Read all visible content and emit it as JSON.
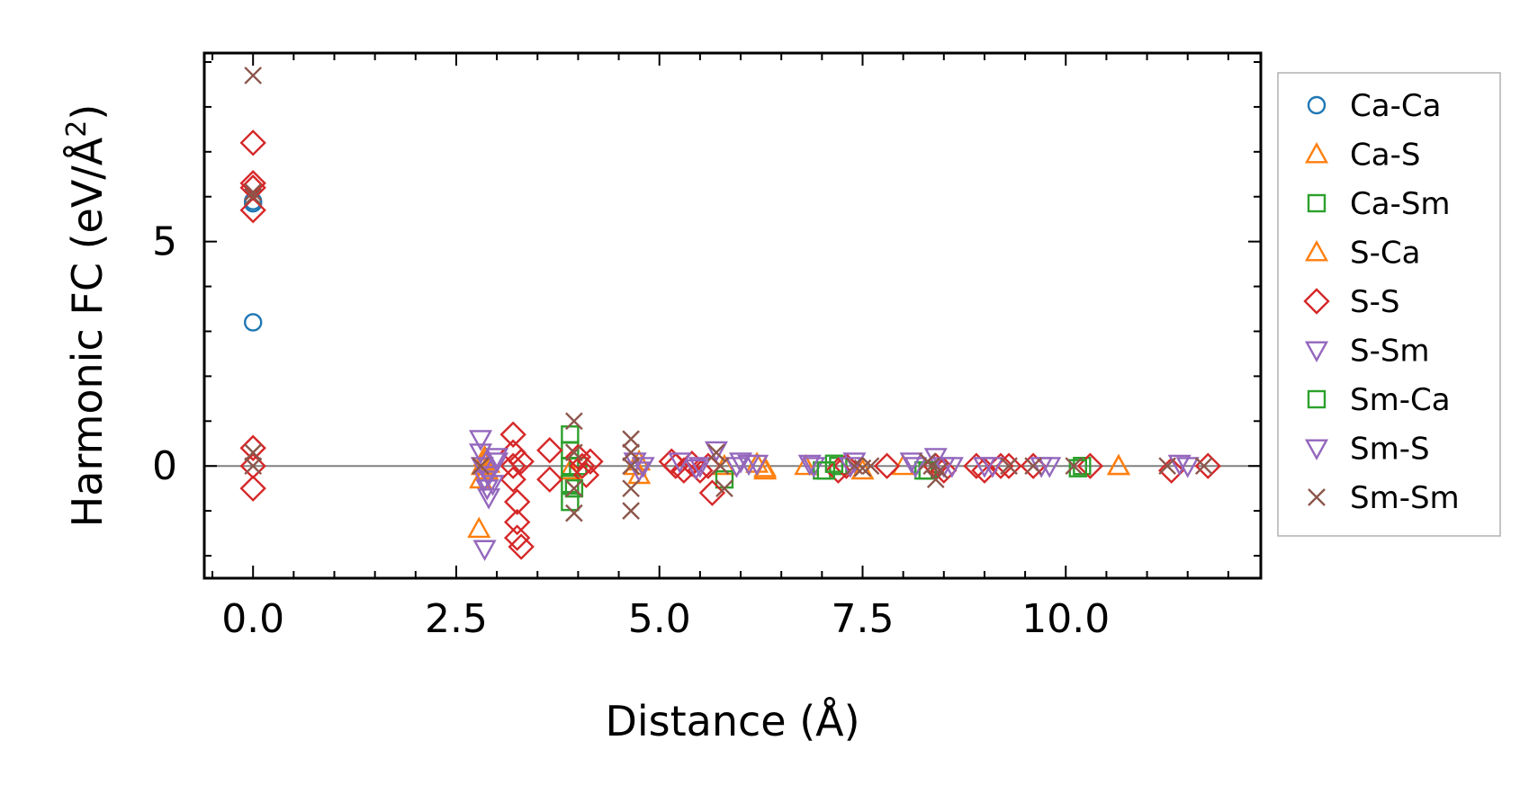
{
  "chart_data": {
    "type": "scatter",
    "xlabel": "Distance (Å)",
    "ylabel": "Harmonic FC (eV/Å",
    "ylabel_sup": "2",
    "ylabel_close": ")",
    "xlim": [
      -0.6,
      12.4
    ],
    "ylim": [
      -2.5,
      9.2
    ],
    "xticks": [
      0.0,
      2.5,
      5.0,
      7.5,
      10.0
    ],
    "xtick_labels": [
      "0.0",
      "2.5",
      "5.0",
      "7.5",
      "10.0"
    ],
    "yticks": [
      0,
      5
    ],
    "ytick_labels": [
      "0",
      "5"
    ],
    "zero_line": true,
    "grid": false,
    "legend_position": "outside-right",
    "series": [
      {
        "name": "Ca-Ca",
        "marker": "circle",
        "color": "#1f77b4",
        "x": [
          0,
          0,
          0
        ],
        "y": [
          5.9,
          5.85,
          3.2
        ]
      },
      {
        "name": "Ca-S",
        "marker": "triangle-up",
        "color": "#ff7f0e",
        "x": [
          2.78,
          2.8,
          2.82,
          2.85,
          2.88,
          2.9,
          3.9,
          4.7,
          4.75,
          5.8,
          6.2,
          6.3,
          6.8,
          7.5,
          8.0,
          10.65
        ],
        "y": [
          -1.4,
          -0.3,
          0.0,
          0.1,
          -0.1,
          0.05,
          -0.1,
          0.0,
          -0.2,
          0.0,
          0.05,
          -0.05,
          0.0,
          -0.1,
          0.0,
          0.0
        ]
      },
      {
        "name": "Ca-Sm",
        "marker": "square",
        "color": "#2ca02c",
        "x": [
          3.9,
          3.9,
          3.9,
          3.9,
          3.9,
          4.0,
          5.8,
          7.0,
          7.2,
          8.25,
          10.2
        ],
        "y": [
          0.7,
          0.35,
          0.0,
          -0.4,
          -0.8,
          0.0,
          -0.3,
          -0.1,
          0.0,
          -0.1,
          0.0
        ]
      },
      {
        "name": "S-Ca",
        "marker": "triangle-up",
        "color": "#ff7f0e",
        "x": [
          2.85,
          4.75,
          6.3,
          10.65
        ],
        "y": [
          0.2,
          0.1,
          -0.1,
          0.0
        ]
      },
      {
        "name": "S-S",
        "marker": "diamond",
        "color": "#d62728",
        "x": [
          0,
          0,
          0,
          0,
          0,
          0,
          0,
          3.2,
          3.2,
          3.2,
          3.25,
          3.25,
          3.25,
          3.3,
          3.3,
          3.2,
          3.65,
          3.65,
          4.0,
          4.05,
          4.1,
          4.15,
          5.15,
          5.2,
          5.3,
          5.4,
          5.5,
          5.6,
          5.65,
          7.2,
          7.3,
          7.8,
          8.4,
          8.5,
          8.9,
          9.0,
          9.2,
          9.3,
          9.6,
          10.3,
          11.3,
          11.75
        ],
        "y": [
          7.2,
          6.3,
          6.2,
          5.7,
          0.4,
          0.0,
          -0.5,
          0.7,
          0.3,
          0.0,
          -0.8,
          -1.25,
          -1.6,
          -1.8,
          0.1,
          -0.3,
          0.35,
          -0.3,
          0.2,
          0.0,
          -0.2,
          0.1,
          0.1,
          0.0,
          -0.1,
          0.05,
          -0.1,
          0.0,
          -0.6,
          -0.1,
          0.0,
          0.0,
          0.0,
          -0.1,
          0.0,
          -0.1,
          0.0,
          0.0,
          0.0,
          0.0,
          -0.1,
          0.0
        ]
      },
      {
        "name": "S-Sm",
        "marker": "triangle-down",
        "color": "#9467bd",
        "x": [
          2.8,
          2.8,
          2.82,
          2.85,
          2.88,
          2.9,
          2.95,
          2.85,
          3.0,
          4.7,
          4.8,
          5.5,
          5.7,
          6.0,
          6.2,
          6.9,
          7.4,
          8.1,
          8.4,
          8.6,
          9.0,
          9.7,
          11.4
        ],
        "y": [
          0.6,
          0.3,
          0.0,
          -0.3,
          -0.5,
          -0.7,
          -0.4,
          -1.85,
          0.2,
          0.1,
          0.0,
          0.0,
          0.35,
          0.1,
          0.05,
          0.0,
          0.1,
          0.1,
          0.2,
          0.0,
          0.0,
          0.0,
          0.05
        ]
      },
      {
        "name": "Sm-Ca",
        "marker": "square",
        "color": "#2ca02c",
        "x": [
          3.95,
          7.05,
          7.15,
          8.3,
          10.15
        ],
        "y": [
          -0.5,
          -0.1,
          0.05,
          -0.1,
          -0.05
        ]
      },
      {
        "name": "Sm-S",
        "marker": "triangle-down",
        "color": "#9467bd",
        "x": [
          2.9,
          3.0,
          4.75,
          5.25,
          5.45,
          5.95,
          6.1,
          6.85,
          7.35,
          8.15,
          8.5,
          9.1,
          9.8,
          11.5
        ],
        "y": [
          -0.2,
          0.1,
          -0.1,
          0.1,
          -0.05,
          0.0,
          0.05,
          0.05,
          0.0,
          0.0,
          0.0,
          0.0,
          0.0,
          0.0
        ]
      },
      {
        "name": "Sm-Sm",
        "marker": "x",
        "color": "#8c564b",
        "x": [
          0,
          0,
          0,
          0,
          0,
          2.8,
          3.95,
          3.95,
          3.95,
          3.95,
          4.65,
          4.65,
          4.65,
          4.65,
          4.65,
          5.7,
          5.75,
          5.8,
          7.4,
          7.5,
          7.6,
          8.3,
          8.35,
          8.4,
          8.45,
          9.3,
          9.6,
          10.1,
          11.25,
          11.7
        ],
        "y": [
          8.7,
          6.1,
          6.0,
          0.3,
          0.0,
          0.0,
          1.0,
          0.3,
          -0.5,
          -1.05,
          0.6,
          0.3,
          0.0,
          -0.5,
          -1.0,
          0.3,
          0.0,
          -0.5,
          0.0,
          -0.05,
          0.0,
          0.1,
          0.0,
          -0.3,
          -0.1,
          0.0,
          0.0,
          0.0,
          0.0,
          0.0
        ]
      }
    ]
  }
}
